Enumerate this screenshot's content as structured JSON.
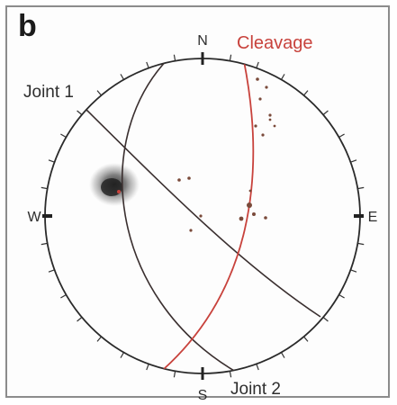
{
  "panel_letter": "b",
  "compass": {
    "north": "N",
    "south": "S",
    "east": "E",
    "west": "W"
  },
  "planes": {
    "cleavage": "Cleavage",
    "joint1": "Joint 1",
    "joint2": "Joint 2"
  },
  "colors": {
    "cleavage": "#c8423c",
    "joint": "#3a2f2f",
    "primitive": "#2a2a2a",
    "poles": "#7a4a3a",
    "contour": "#3a3a3a"
  }
}
